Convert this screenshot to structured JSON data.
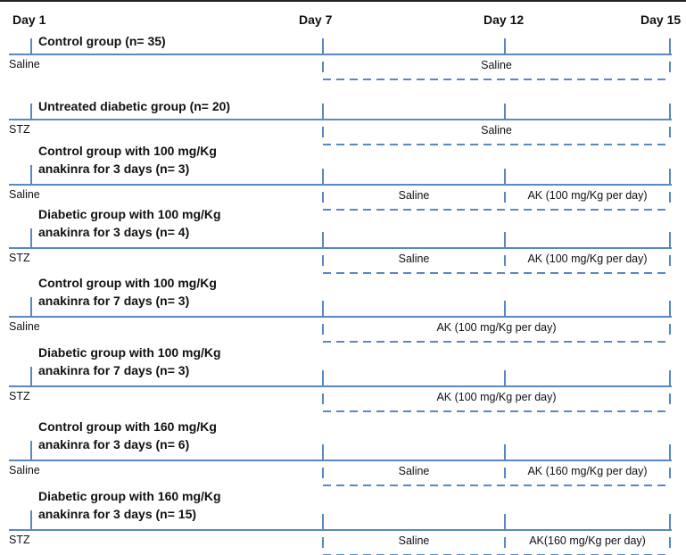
{
  "colors": {
    "line": "#5b87c2",
    "text": "#111111",
    "frame": "#222222"
  },
  "timeline": {
    "days": [
      {
        "label": "Day 1"
      },
      {
        "label": "Day 7"
      },
      {
        "label": "Day 12"
      },
      {
        "label": "Day 15"
      }
    ]
  },
  "groups": [
    {
      "title_lines": [
        "Control group (n= 35)"
      ],
      "start_label": "Saline",
      "segments": [
        {
          "label": "Saline",
          "from": "Day 7",
          "to": "Day 15"
        }
      ]
    },
    {
      "title_lines": [
        "Untreated diabetic group (n= 20)"
      ],
      "start_label": "STZ",
      "segments": [
        {
          "label": "Saline",
          "from": "Day 7",
          "to": "Day 15"
        }
      ]
    },
    {
      "title_lines": [
        "Control group with 100 mg/Kg",
        "anakinra for 3 days (n= 3)"
      ],
      "start_label": "Saline",
      "segments": [
        {
          "label": "Saline",
          "from": "Day 7",
          "to": "Day 12"
        },
        {
          "label": "AK (100 mg/Kg per day)",
          "from": "Day 12",
          "to": "Day 15"
        }
      ]
    },
    {
      "title_lines": [
        "Diabetic group with 100 mg/Kg",
        "anakinra for 3 days (n= 4)"
      ],
      "start_label": "STZ",
      "segments": [
        {
          "label": "Saline",
          "from": "Day 7",
          "to": "Day 12"
        },
        {
          "label": "AK (100 mg/Kg per day)",
          "from": "Day 12",
          "to": "Day 15"
        }
      ]
    },
    {
      "title_lines": [
        "Control group with 100 mg/Kg",
        "anakinra for 7 days (n= 3)"
      ],
      "start_label": "Saline",
      "segments": [
        {
          "label": "AK (100 mg/Kg per day)",
          "from": "Day 7",
          "to": "Day 15"
        }
      ]
    },
    {
      "title_lines": [
        "Diabetic group with 100 mg/Kg",
        "anakinra for 7 days (n= 3)"
      ],
      "start_label": "STZ",
      "segments": [
        {
          "label": "AK (100 mg/Kg per day)",
          "from": "Day 7",
          "to": "Day 15"
        }
      ]
    },
    {
      "title_lines": [
        "Control group with 160 mg/Kg",
        "anakinra for 3 days (n= 6)"
      ],
      "start_label": "Saline",
      "segments": [
        {
          "label": "Saline",
          "from": "Day 7",
          "to": "Day 12"
        },
        {
          "label": "AK (160 mg/Kg per day)",
          "from": "Day 12",
          "to": "Day 15"
        }
      ]
    },
    {
      "title_lines": [
        "Diabetic group with 160 mg/Kg",
        "anakinra for 3 days (n= 15)"
      ],
      "start_label": "STZ",
      "segments": [
        {
          "label": "Saline",
          "from": "Day 7",
          "to": "Day 12"
        },
        {
          "label": "AK(160 mg/Kg per day)",
          "from": "Day 12",
          "to": "Day 15"
        }
      ]
    }
  ]
}
